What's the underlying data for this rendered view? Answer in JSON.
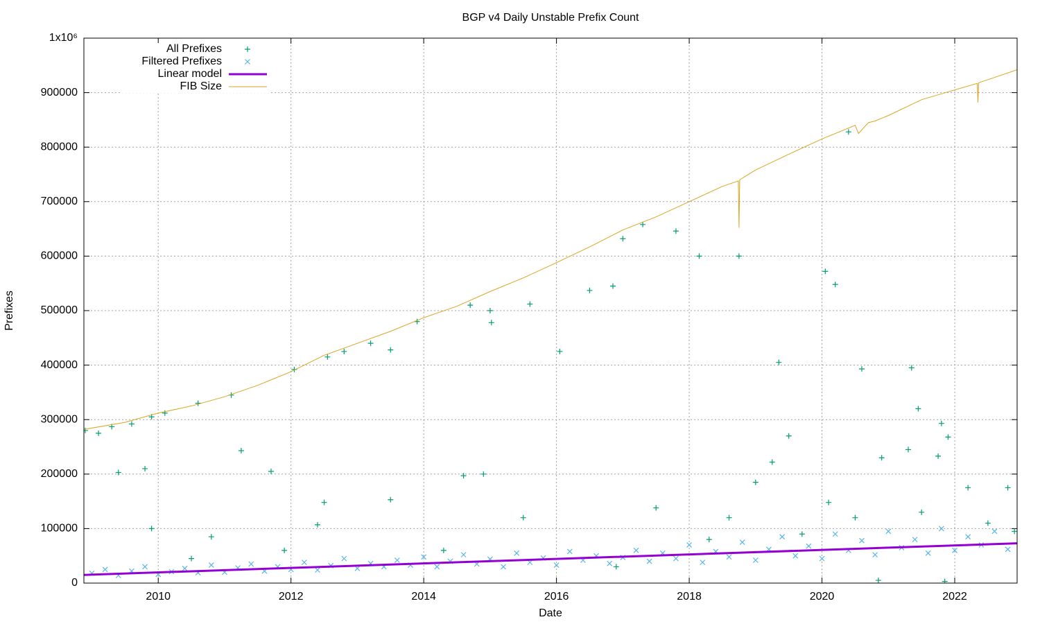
{
  "chart_data": {
    "type": "scatter",
    "title": "BGP v4 Daily Unstable Prefix Count",
    "xlabel": "Date",
    "ylabel": "Prefixes",
    "xlim": [
      2008.88,
      2022.94
    ],
    "ylim": [
      0,
      1000000
    ],
    "xticks": [
      2010,
      2012,
      2014,
      2016,
      2018,
      2020,
      2022
    ],
    "yticks": [
      0,
      100000,
      200000,
      300000,
      400000,
      500000,
      600000,
      700000,
      800000,
      900000,
      {
        "value": 1000000,
        "label": "1x10⁶"
      }
    ],
    "grid": true,
    "legend": "upper-left",
    "series": [
      {
        "name": "All Prefixes",
        "marker": "plus",
        "color": "#009e73",
        "x": [
          2008.9,
          2009.1,
          2009.3,
          2009.6,
          2009.9,
          2010.1,
          2010.6,
          2011.1,
          2011.7,
          2011.25,
          2012.05,
          2012.55,
          2012.8,
          2013.2,
          2013.5,
          2013.9,
          2014.7,
          2015.0,
          2015.02,
          2015.6,
          2016.05,
          2016.5,
          2016.85,
          2017.0,
          2017.3,
          2017.8,
          2018.15,
          2018.75,
          2019.35,
          2020.05,
          2020.2,
          2020.4,
          2020.6,
          2021.35,
          2021.45,
          2021.8,
          2021.9,
          2009.4,
          2009.8,
          2009.9,
          2010.8,
          2012.4,
          2012.5,
          2013.5,
          2014.6,
          2014.9,
          2015.5,
          2017.5,
          2018.6,
          2019.0,
          2019.25,
          2019.5,
          2020.1,
          2020.9,
          2021.3,
          2021.75,
          2022.2,
          2022.8,
          2010.5,
          2014.3,
          2016.9,
          2019.7,
          2020.85,
          2021.85,
          2022.5,
          2022.9,
          2020.5,
          2021.5,
          2018.3,
          2011.9
        ],
        "values": [
          280000,
          275000,
          287000,
          292000,
          305000,
          312000,
          330000,
          345000,
          205000,
          243000,
          392000,
          415000,
          425000,
          440000,
          428000,
          480000,
          510000,
          500000,
          478000,
          512000,
          425000,
          537000,
          545000,
          632000,
          658000,
          646000,
          600000,
          600000,
          405000,
          572000,
          548000,
          828000,
          393000,
          395000,
          320000,
          293000,
          268000,
          203000,
          210000,
          100000,
          85000,
          107000,
          148000,
          153000,
          197000,
          200000,
          120000,
          138000,
          120000,
          185000,
          222000,
          270000,
          148000,
          230000,
          245000,
          233000,
          175000,
          175000,
          45000,
          60000,
          30000,
          90000,
          5000,
          3000,
          110000,
          95000,
          120000,
          130000,
          80000,
          60000
        ]
      },
      {
        "name": "Filtered Prefixes",
        "marker": "cross",
        "color": "#56b4e9",
        "x": [
          2009.0,
          2009.2,
          2009.4,
          2009.6,
          2009.8,
          2010.0,
          2010.2,
          2010.4,
          2010.6,
          2010.8,
          2011.0,
          2011.2,
          2011.4,
          2011.6,
          2011.8,
          2012.0,
          2012.2,
          2012.4,
          2012.6,
          2012.8,
          2013.0,
          2013.2,
          2013.4,
          2013.6,
          2013.8,
          2014.0,
          2014.2,
          2014.4,
          2014.6,
          2014.8,
          2015.0,
          2015.2,
          2015.4,
          2015.6,
          2015.8,
          2016.0,
          2016.2,
          2016.4,
          2016.6,
          2016.8,
          2017.0,
          2017.2,
          2017.4,
          2017.6,
          2017.8,
          2018.0,
          2018.2,
          2018.4,
          2018.6,
          2018.8,
          2019.0,
          2019.2,
          2019.4,
          2019.6,
          2019.8,
          2020.0,
          2020.2,
          2020.4,
          2020.6,
          2020.8,
          2021.0,
          2021.2,
          2021.4,
          2021.6,
          2021.8,
          2022.0,
          2022.2,
          2022.4,
          2022.6,
          2022.8
        ],
        "values": [
          18000,
          25000,
          14000,
          22000,
          30000,
          16000,
          21000,
          27000,
          19000,
          33000,
          20000,
          28000,
          35000,
          22000,
          30000,
          25000,
          38000,
          24000,
          32000,
          45000,
          27000,
          36000,
          30000,
          42000,
          33000,
          48000,
          30000,
          40000,
          52000,
          35000,
          44000,
          30000,
          55000,
          38000,
          46000,
          33000,
          58000,
          42000,
          50000,
          36000,
          47000,
          60000,
          40000,
          55000,
          45000,
          70000,
          38000,
          58000,
          48000,
          75000,
          42000,
          62000,
          85000,
          50000,
          68000,
          45000,
          90000,
          60000,
          78000,
          52000,
          95000,
          65000,
          80000,
          55000,
          100000,
          60000,
          85000,
          70000,
          95000,
          62000
        ]
      },
      {
        "name": "Linear model",
        "marker": "line",
        "color": "#9400d3",
        "width": 3,
        "x": [
          2008.88,
          2022.94
        ],
        "values": [
          15000,
          73000
        ]
      },
      {
        "name": "FIB Size",
        "marker": "line",
        "color": "#daa520",
        "width": 1,
        "x": [
          2008.88,
          2009.5,
          2010.0,
          2010.5,
          2011.0,
          2011.5,
          2012.0,
          2012.5,
          2013.0,
          2013.5,
          2014.0,
          2014.5,
          2015.0,
          2015.5,
          2016.0,
          2016.5,
          2017.0,
          2017.5,
          2018.0,
          2018.5,
          2018.74,
          2018.75,
          2018.76,
          2019.0,
          2019.5,
          2020.0,
          2020.5,
          2020.55,
          2020.7,
          2020.8,
          2021.0,
          2021.5,
          2022.0,
          2022.34,
          2022.35,
          2022.36,
          2022.94
        ],
        "values": [
          282000,
          295000,
          312000,
          325000,
          342000,
          363000,
          388000,
          418000,
          440000,
          462000,
          487000,
          508000,
          535000,
          560000,
          588000,
          617000,
          648000,
          672000,
          700000,
          728000,
          738000,
          652000,
          740000,
          758000,
          787000,
          815000,
          840000,
          825000,
          845000,
          848000,
          858000,
          887000,
          905000,
          917000,
          882000,
          918000,
          942000
        ]
      }
    ]
  }
}
